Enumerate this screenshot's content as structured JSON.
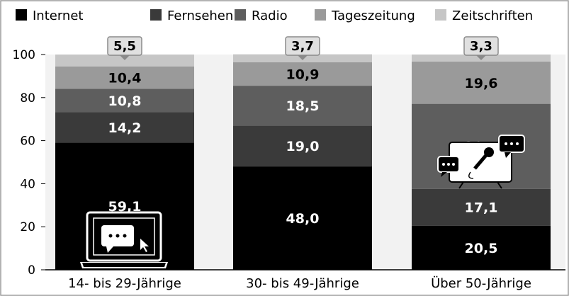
{
  "chart_data": {
    "type": "bar",
    "stacked": true,
    "categories": [
      "14- bis 29-Jährige",
      "30- bis 49-Jährige",
      "Über 50-Jährige"
    ],
    "series": [
      {
        "name": "Internet",
        "color": "#000000",
        "values": [
          59.1,
          48.0,
          20.5
        ]
      },
      {
        "name": "Fernsehen",
        "color": "#3a3a3a",
        "values": [
          14.2,
          19.0,
          17.1
        ]
      },
      {
        "name": "Radio",
        "color": "#5e5e5e",
        "values": [
          10.8,
          18.5,
          39.5
        ]
      },
      {
        "name": "Tageszeitung",
        "color": "#9a9a9a",
        "values": [
          10.4,
          10.9,
          19.6
        ]
      },
      {
        "name": "Zeitschriften",
        "color": "#c6c6c6",
        "values": [
          5.5,
          3.7,
          3.3
        ]
      }
    ],
    "value_labels": [
      [
        "59,1",
        "48,0",
        "20,5"
      ],
      [
        "14,2",
        "19,0",
        "17,1"
      ],
      [
        "10,8",
        "18,5",
        "39,5"
      ],
      [
        "10,4",
        "10,9",
        "19,6"
      ],
      [
        "5,5",
        "3,7",
        "3,3"
      ]
    ],
    "yticks": [
      "0",
      "20",
      "40",
      "60",
      "80",
      "100"
    ],
    "ylim": [
      0,
      100
    ],
    "legend_position": "top",
    "grid": false,
    "icons": [
      "laptop-chat-icon",
      "",
      "microphone-chat-icon"
    ]
  }
}
